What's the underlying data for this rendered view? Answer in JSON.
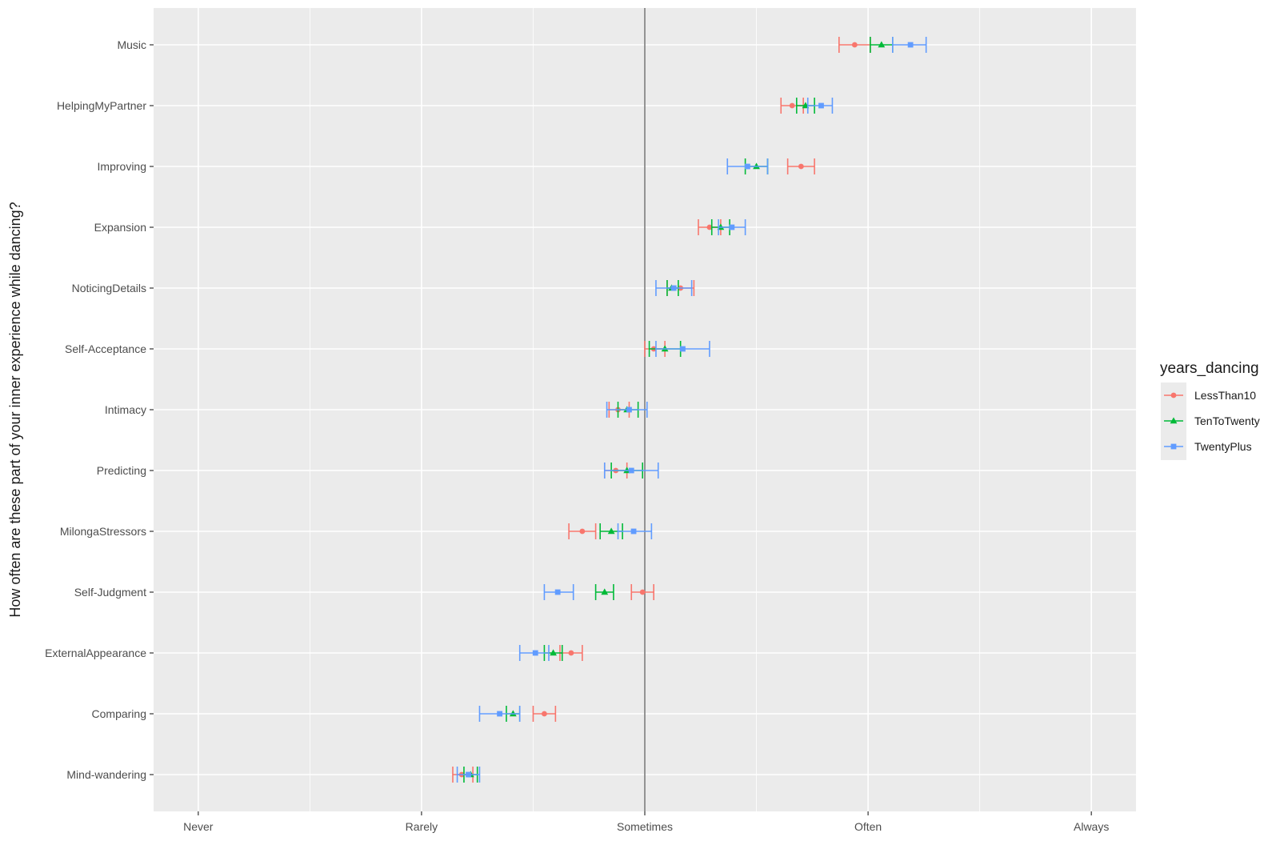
{
  "chart_data": {
    "type": "errorbar",
    "ylabel": "How often are these part of your inner experience while dancing?",
    "xlabel": "",
    "x_ticks": [
      {
        "value": 1,
        "label": "Never"
      },
      {
        "value": 2,
        "label": "Rarely"
      },
      {
        "value": 3,
        "label": "Sometimes"
      },
      {
        "value": 4,
        "label": "Often"
      },
      {
        "value": 5,
        "label": "Always"
      }
    ],
    "xlim": [
      0.8,
      5.2
    ],
    "reference_line_x": 3,
    "categories": [
      "Music",
      "HelpingMyPartner",
      "Improving",
      "Expansion",
      "NoticingDetails",
      "Self-Acceptance",
      "Intimacy",
      "Predicting",
      "MilongaStressors",
      "Self-Judgment",
      "ExternalAppearance",
      "Comparing",
      "Mind-wandering"
    ],
    "legend": {
      "title": "years_dancing",
      "placement": "right"
    },
    "grid": true,
    "series": [
      {
        "name": "LessThan10",
        "color": "#F8766D",
        "marker": "circle",
        "mean": [
          3.94,
          3.66,
          3.7,
          3.29,
          3.16,
          3.04,
          2.88,
          2.87,
          2.72,
          2.99,
          2.67,
          2.55,
          2.18
        ],
        "lower": [
          3.87,
          3.61,
          3.64,
          3.24,
          3.1,
          3.0,
          2.84,
          2.82,
          2.66,
          2.94,
          2.62,
          2.5,
          2.14
        ],
        "upper": [
          4.01,
          3.71,
          3.76,
          3.34,
          3.22,
          3.09,
          2.93,
          2.92,
          2.78,
          3.04,
          2.72,
          2.6,
          2.23
        ]
      },
      {
        "name": "TenToTwenty",
        "color": "#00BA38",
        "marker": "triangle",
        "mean": [
          4.06,
          3.72,
          3.5,
          3.34,
          3.12,
          3.09,
          2.92,
          2.92,
          2.85,
          2.82,
          2.59,
          2.41,
          2.22
        ],
        "lower": [
          4.01,
          3.68,
          3.45,
          3.3,
          3.1,
          3.02,
          2.88,
          2.85,
          2.8,
          2.78,
          2.55,
          2.38,
          2.19
        ],
        "upper": [
          4.11,
          3.76,
          3.55,
          3.38,
          3.15,
          3.16,
          2.97,
          2.99,
          2.9,
          2.86,
          2.63,
          2.44,
          2.25
        ]
      },
      {
        "name": "TwentyPlus",
        "color": "#619CFF",
        "marker": "square",
        "mean": [
          4.19,
          3.79,
          3.46,
          3.39,
          3.13,
          3.17,
          2.93,
          2.94,
          2.95,
          2.61,
          2.51,
          2.35,
          2.21
        ],
        "lower": [
          4.11,
          3.73,
          3.37,
          3.33,
          3.05,
          3.05,
          2.83,
          2.82,
          2.88,
          2.55,
          2.44,
          2.26,
          2.16
        ],
        "upper": [
          4.26,
          3.84,
          3.55,
          3.45,
          3.21,
          3.29,
          3.01,
          3.06,
          3.03,
          2.68,
          2.57,
          2.44,
          2.26
        ]
      }
    ]
  }
}
